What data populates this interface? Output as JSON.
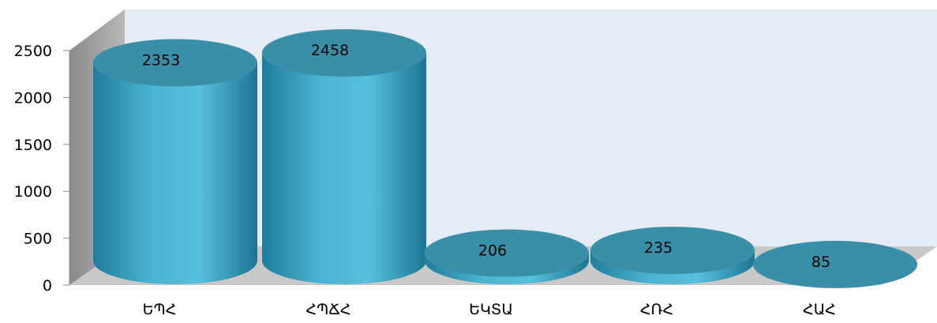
{
  "chart_data": {
    "type": "bar",
    "style": "3d-cylinder",
    "categories": [
      "ԵՊՀ",
      "ՀՊՃՀ",
      "ԵԿՏԱ",
      "ՀՌՀ",
      "ՀԱՀ"
    ],
    "values": [
      2353,
      2458,
      206,
      235,
      85
    ],
    "data_labels": [
      "2353",
      "2458",
      "206",
      "235",
      "85"
    ],
    "y_ticks": [
      "0",
      "500",
      "1000",
      "1500",
      "2000",
      "2500"
    ],
    "ylim": [
      0,
      2500
    ],
    "grid": false,
    "legend": "none",
    "colors": {
      "bar_body": "#4bb3d1",
      "bar_dark": "#1f7d9a",
      "bar_top": "#3a8fa8",
      "back_wall": "#e6ecf6",
      "side_wall": "#a6a6a6",
      "floor": "#c8c8c8"
    }
  }
}
